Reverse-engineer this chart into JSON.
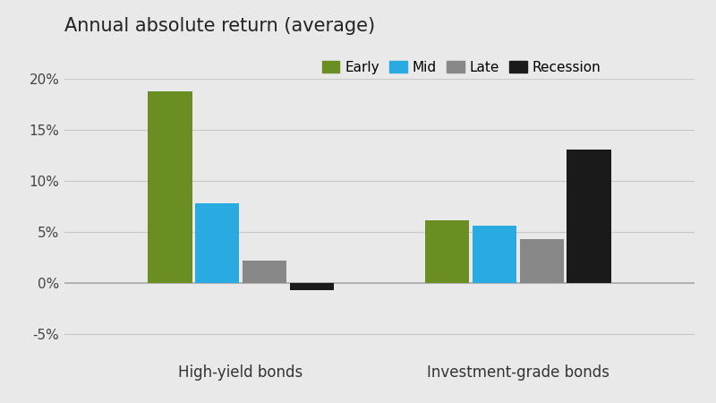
{
  "title": "Annual absolute return (average)",
  "categories": [
    "High-yield bonds",
    "Investment-grade bonds"
  ],
  "phases": [
    "Early",
    "Mid",
    "Late",
    "Recession"
  ],
  "colors": [
    "#6b8e23",
    "#29aae1",
    "#888888",
    "#1a1a1a"
  ],
  "values": {
    "High-yield bonds": [
      18.8,
      7.8,
      2.2,
      -0.7
    ],
    "Investment-grade bonds": [
      6.2,
      5.6,
      4.3,
      13.1
    ]
  },
  "ylim": [
    -7.0,
    23.0
  ],
  "yticks": [
    -5,
    0,
    5,
    10,
    15,
    20
  ],
  "ytick_labels": [
    "-5%",
    "0%",
    "5%",
    "10%",
    "15%",
    "20%"
  ],
  "background_color": "#e9e9e9",
  "bar_width": 0.07,
  "title_fontsize": 15,
  "legend_fontsize": 11,
  "tick_fontsize": 11,
  "xlabel_fontsize": 12,
  "group_centers": [
    0.28,
    0.72
  ],
  "xlim": [
    0.0,
    1.0
  ]
}
